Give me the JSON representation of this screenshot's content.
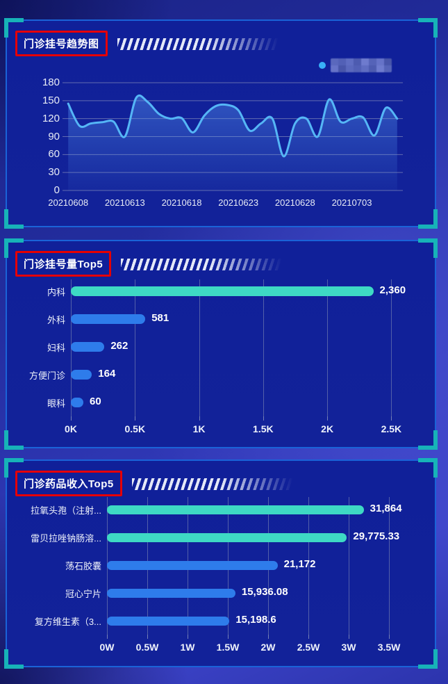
{
  "colors": {
    "accent_teal": "#17b3b8",
    "panel_border_blue": "#1a63d8",
    "title_box_red": "#e60000",
    "line_blue": "#55b6f6",
    "bar_teal": "#3ed9c4",
    "bar_blue": "#2e7ceb",
    "legend_dot_blue": "#38b0f8"
  },
  "legend_mosaic_colors": [
    "#5a68bd",
    "#4d5bb0",
    "#6673c8",
    "#5260b6",
    "#6e7bce",
    "#4855aa",
    "#5f6dc2",
    "#5563b8"
  ],
  "chart_data": [
    {
      "type": "line",
      "title": "门诊挂号趋势图",
      "legend": {
        "censored": true
      },
      "x": [
        "20210608",
        "20210609",
        "20210610",
        "20210611",
        "20210612",
        "20210613",
        "20210614",
        "20210615",
        "20210616",
        "20210617",
        "20210618",
        "20210619",
        "20210620",
        "20210621",
        "20210622",
        "20210623",
        "20210624",
        "20210625",
        "20210626",
        "20210627",
        "20210628",
        "20210629",
        "20210630",
        "20210701",
        "20210702",
        "20210703",
        "20210704",
        "20210705",
        "20210706",
        "20210707"
      ],
      "values": [
        145,
        108,
        112,
        114,
        115,
        90,
        155,
        148,
        128,
        120,
        121,
        97,
        125,
        141,
        143,
        134,
        100,
        112,
        120,
        57,
        112,
        120,
        90,
        152,
        115,
        120,
        122,
        92,
        138,
        120
      ],
      "x_tick_labels": [
        "20210608",
        "20210613",
        "20210618",
        "20210623",
        "20210628",
        "20210703"
      ],
      "x_tick_indices": [
        0,
        5,
        10,
        15,
        20,
        25
      ],
      "ylim": [
        0,
        180
      ],
      "yticks": [
        0,
        30,
        60,
        90,
        120,
        150,
        180
      ],
      "grid": "horizontal",
      "line_color": "#55b6f6",
      "area_fill": true
    },
    {
      "type": "bar",
      "orientation": "horizontal",
      "title": "门诊挂号量Top5",
      "categories": [
        "内科",
        "外科",
        "妇科",
        "方便门诊",
        "眼科"
      ],
      "values": [
        2360,
        581,
        262,
        164,
        60
      ],
      "value_labels": [
        "2,360",
        "581",
        "262",
        "164",
        "60"
      ],
      "bar_colors": [
        "#3ed9c4",
        "#2e7ceb",
        "#2e7ceb",
        "#2e7ceb",
        "#2e7ceb"
      ],
      "xticks": [
        "0K",
        "0.5K",
        "1K",
        "1.5K",
        "2K",
        "2.5K"
      ],
      "xtick_values": [
        0,
        500,
        1000,
        1500,
        2000,
        2500
      ],
      "axis_max": 2590,
      "grid": "vertical"
    },
    {
      "type": "bar",
      "orientation": "horizontal",
      "title": "门诊药品收入Top5",
      "categories": [
        "拉氧头孢（注射...",
        "雷贝拉唑钠肠溶...",
        "荡石胶囊",
        "冠心宁片",
        "复方维生素（3..."
      ],
      "values": [
        31864,
        29775.33,
        21172,
        15936.08,
        15198.6
      ],
      "value_labels": [
        "31,864",
        "29,775.33",
        "21,172",
        "15,936.08",
        "15,198.6"
      ],
      "bar_colors": [
        "#3ed9c4",
        "#3ed9c4",
        "#2e7ceb",
        "#2e7ceb",
        "#2e7ceb"
      ],
      "xticks": [
        "0W",
        "0.5W",
        "1W",
        "1.5W",
        "2W",
        "2.5W",
        "3W",
        "3.5W"
      ],
      "xtick_values": [
        0,
        5000,
        10000,
        15000,
        20000,
        25000,
        30000,
        35000
      ],
      "axis_max": 36720,
      "grid": "vertical"
    }
  ]
}
